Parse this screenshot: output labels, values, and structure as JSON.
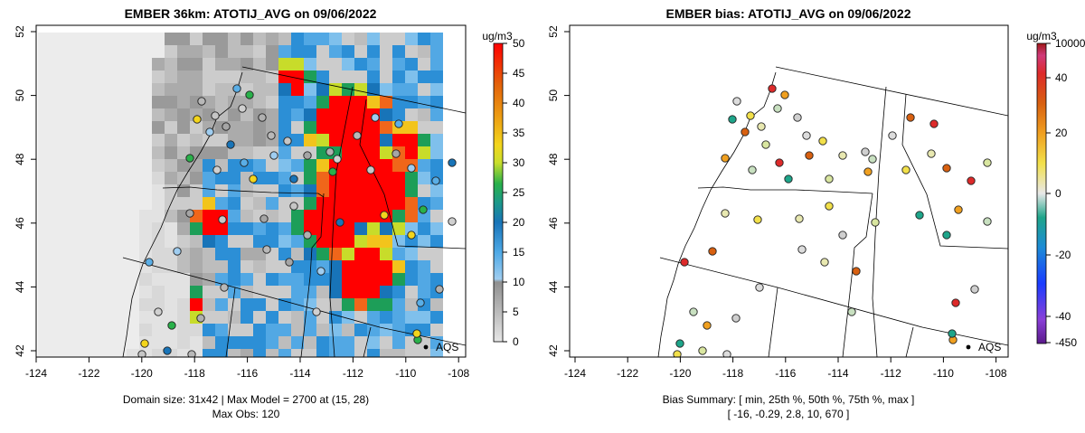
{
  "chart_data": [
    {
      "type": "heatmap",
      "title": "EMBER 36km: ATOTIJ_AVG on 09/06/2022",
      "x_ticks": [
        -124,
        -122,
        -120,
        -118,
        -116,
        -114,
        -112,
        -110,
        -108
      ],
      "y_ticks": [
        42,
        44,
        46,
        48,
        50,
        52
      ],
      "xlim": [
        -124,
        -108
      ],
      "ylim": [
        42,
        52.3
      ],
      "colorbar_unit": "ug/m3",
      "colorbar_ticks": [
        0,
        5,
        10,
        15,
        20,
        25,
        30,
        35,
        40,
        45,
        50
      ],
      "colorbar_range": [
        0,
        50
      ],
      "domain_text": "Domain size: 31x42 | Max Model = 2700 at (15, 28)",
      "max_obs_text": "Max Obs: 120",
      "legend_label": "AQS"
    },
    {
      "type": "scatter",
      "title": "EMBER bias: ATOTIJ_AVG on 09/06/2022",
      "x_ticks": [
        -124,
        -122,
        -120,
        -118,
        -116,
        -114,
        -112,
        -110,
        -108
      ],
      "y_ticks": [
        42,
        44,
        46,
        48,
        50,
        52
      ],
      "xlim": [
        -124,
        -108
      ],
      "ylim": [
        42,
        52.3
      ],
      "colorbar_unit": "ug/m3",
      "colorbar_ticks": [
        "10000",
        "40",
        "20",
        "0",
        "-20",
        "-40",
        "-450"
      ],
      "summary_label": "Bias Summary: [ min, 25th %, 50th %, 75th %, max ]",
      "summary_values": "[ -16,   -0.29,   2.8,   10,   670 ]",
      "legend_label": "AQS"
    }
  ]
}
